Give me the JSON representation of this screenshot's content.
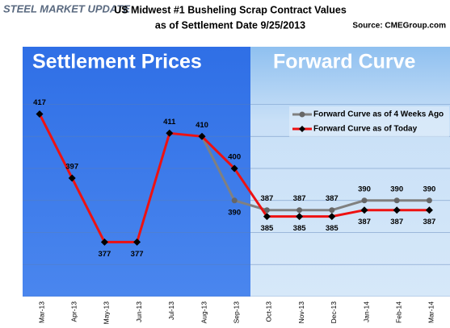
{
  "chart_data": {
    "type": "line",
    "logo": "STEEL MARKET UPDATE",
    "title": "US Midwest #1 Busheling Scrap Contract Values",
    "subtitle": "as of Settlement Date 9/25/2013",
    "source": "Source: CMEGroup.com",
    "annotations": [
      "Settlement Prices",
      "Forward Curve"
    ],
    "categories": [
      "Mar-13",
      "Apr-13",
      "May-13",
      "Jun-13",
      "Jul-13",
      "Aug-13",
      "Sep-13",
      "Oct-13",
      "Nov-13",
      "Dec-13",
      "Jan-14",
      "Feb-14",
      "Mar-14"
    ],
    "series": [
      {
        "name": "Forward Curve as of 4 Weeks Ago",
        "color": "#808080",
        "values": [
          null,
          null,
          null,
          null,
          null,
          410,
          390,
          387,
          387,
          387,
          390,
          390,
          390
        ]
      },
      {
        "name": "Forward Curve as of Today",
        "color": "#ee1111",
        "values": [
          417,
          397,
          377,
          377,
          411,
          410,
          400,
          385,
          385,
          385,
          387,
          387,
          387
        ]
      }
    ],
    "ylim": [
      360,
      438
    ],
    "yticks": [
      360,
      370,
      380,
      390,
      400,
      410,
      420
    ],
    "grid": true,
    "legend": "upper right"
  }
}
